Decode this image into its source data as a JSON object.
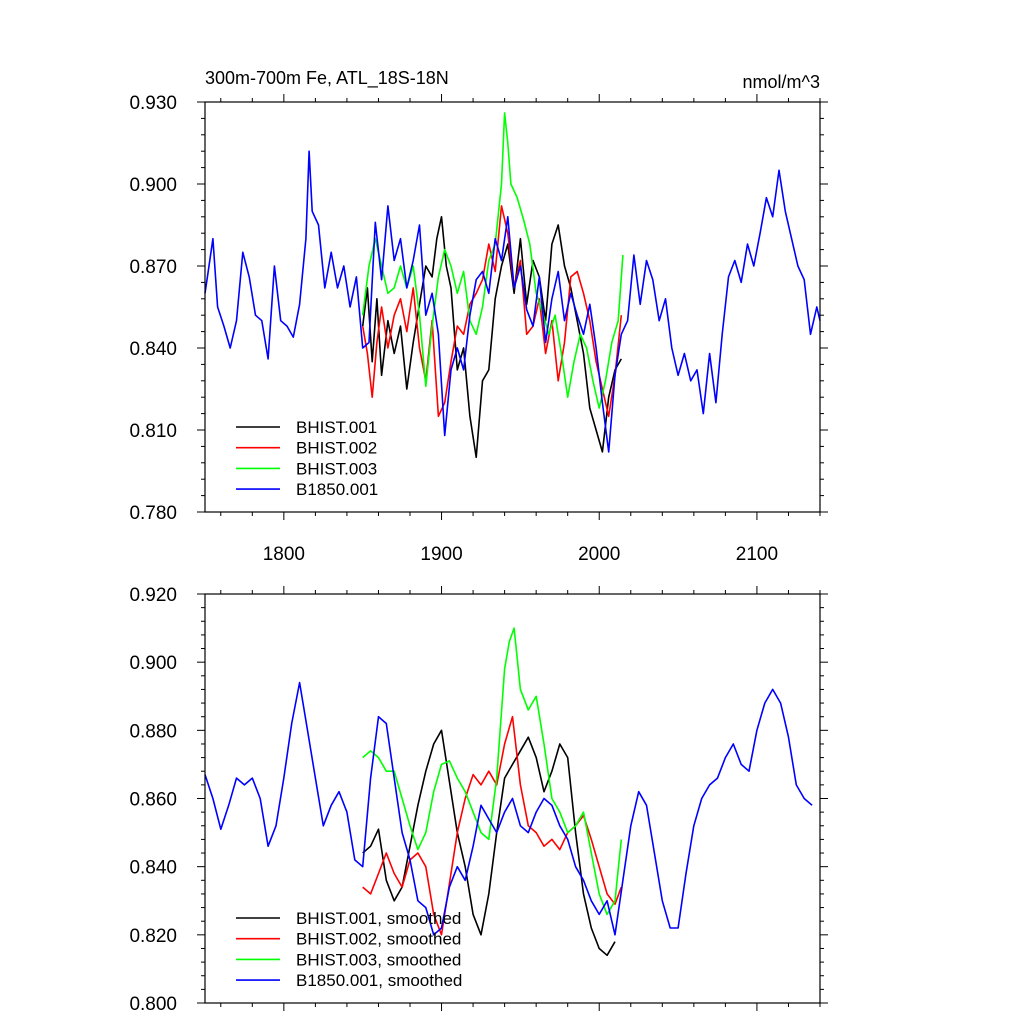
{
  "chart_data": [
    {
      "type": "line",
      "title": "300m-700m Fe, ATL_18S-18N",
      "units": "nmol/m^3",
      "xlim": [
        1750,
        2140
      ],
      "ylim": [
        0.78,
        0.93
      ],
      "xticks": [
        1800,
        1900,
        2000,
        2100
      ],
      "xtick_labels": [
        "1800",
        "1900",
        "2000",
        "2100"
      ],
      "yticks": [
        0.78,
        0.81,
        0.84,
        0.87,
        0.9,
        0.93
      ],
      "ytick_labels": [
        "0.780",
        "0.810",
        "0.840",
        "0.870",
        "0.900",
        "0.930"
      ],
      "legend_position": "bottom-left",
      "series": [
        {
          "name": "BHIST.001",
          "color": "#000000",
          "x": [
            1850,
            1853,
            1856,
            1859,
            1862,
            1866,
            1870,
            1874,
            1878,
            1882,
            1886,
            1890,
            1894,
            1897,
            1900,
            1903,
            1906,
            1910,
            1914,
            1918,
            1922,
            1926,
            1930,
            1934,
            1938,
            1942,
            1946,
            1950,
            1954,
            1958,
            1962,
            1966,
            1970,
            1974,
            1978,
            1982,
            1986,
            1990,
            1994,
            1998,
            2002,
            2006,
            2010,
            2014
          ],
          "y": [
            0.848,
            0.862,
            0.835,
            0.858,
            0.83,
            0.85,
            0.838,
            0.848,
            0.825,
            0.842,
            0.856,
            0.87,
            0.866,
            0.88,
            0.888,
            0.87,
            0.862,
            0.832,
            0.84,
            0.815,
            0.8,
            0.828,
            0.832,
            0.858,
            0.87,
            0.878,
            0.86,
            0.88,
            0.856,
            0.872,
            0.866,
            0.85,
            0.878,
            0.885,
            0.87,
            0.862,
            0.85,
            0.838,
            0.818,
            0.81,
            0.802,
            0.822,
            0.832,
            0.836
          ]
        },
        {
          "name": "BHIST.002",
          "color": "#ff0000",
          "x": [
            1850,
            1853,
            1856,
            1859,
            1862,
            1866,
            1870,
            1874,
            1878,
            1882,
            1886,
            1890,
            1894,
            1898,
            1902,
            1906,
            1910,
            1914,
            1918,
            1922,
            1926,
            1930,
            1934,
            1938,
            1942,
            1946,
            1950,
            1954,
            1958,
            1962,
            1966,
            1970,
            1974,
            1978,
            1982,
            1986,
            1990,
            1994,
            1998,
            2002,
            2006,
            2010,
            2014
          ],
          "y": [
            0.848,
            0.838,
            0.822,
            0.842,
            0.855,
            0.84,
            0.852,
            0.858,
            0.846,
            0.862,
            0.84,
            0.828,
            0.85,
            0.815,
            0.82,
            0.835,
            0.848,
            0.845,
            0.856,
            0.86,
            0.865,
            0.878,
            0.868,
            0.892,
            0.882,
            0.862,
            0.872,
            0.845,
            0.848,
            0.858,
            0.838,
            0.85,
            0.828,
            0.842,
            0.866,
            0.868,
            0.86,
            0.85,
            0.835,
            0.825,
            0.815,
            0.83,
            0.852
          ]
        },
        {
          "name": "BHIST.003",
          "color": "#00ff00",
          "x": [
            1850,
            1854,
            1858,
            1862,
            1866,
            1870,
            1874,
            1878,
            1882,
            1886,
            1890,
            1894,
            1898,
            1902,
            1906,
            1910,
            1914,
            1918,
            1922,
            1926,
            1930,
            1934,
            1938,
            1940,
            1942,
            1944,
            1948,
            1952,
            1956,
            1960,
            1964,
            1968,
            1972,
            1976,
            1980,
            1984,
            1988,
            1992,
            1996,
            2000,
            2004,
            2008,
            2012,
            2015
          ],
          "y": [
            0.852,
            0.87,
            0.88,
            0.87,
            0.86,
            0.862,
            0.87,
            0.862,
            0.87,
            0.852,
            0.826,
            0.848,
            0.866,
            0.876,
            0.87,
            0.86,
            0.868,
            0.85,
            0.845,
            0.855,
            0.872,
            0.878,
            0.9,
            0.926,
            0.915,
            0.9,
            0.895,
            0.887,
            0.878,
            0.86,
            0.853,
            0.845,
            0.852,
            0.838,
            0.822,
            0.835,
            0.845,
            0.84,
            0.828,
            0.818,
            0.828,
            0.842,
            0.85,
            0.874
          ]
        },
        {
          "name": "B1850.001",
          "color": "#0000ff",
          "x": [
            1750,
            1752,
            1755,
            1758,
            1762,
            1766,
            1770,
            1774,
            1778,
            1782,
            1786,
            1790,
            1794,
            1798,
            1802,
            1806,
            1810,
            1814,
            1816,
            1818,
            1822,
            1826,
            1830,
            1834,
            1838,
            1842,
            1846,
            1850,
            1854,
            1858,
            1862,
            1866,
            1870,
            1874,
            1878,
            1882,
            1886,
            1890,
            1894,
            1898,
            1902,
            1906,
            1910,
            1914,
            1918,
            1922,
            1926,
            1930,
            1934,
            1938,
            1942,
            1946,
            1950,
            1954,
            1958,
            1962,
            1966,
            1970,
            1974,
            1978,
            1982,
            1986,
            1990,
            1994,
            1998,
            2002,
            2006,
            2010,
            2014,
            2018,
            2022,
            2026,
            2030,
            2034,
            2038,
            2042,
            2046,
            2050,
            2054,
            2058,
            2062,
            2066,
            2070,
            2074,
            2078,
            2082,
            2086,
            2090,
            2094,
            2098,
            2102,
            2106,
            2110,
            2114,
            2118,
            2122,
            2126,
            2130,
            2134,
            2138,
            2140
          ],
          "y": [
            0.86,
            0.868,
            0.88,
            0.855,
            0.848,
            0.84,
            0.85,
            0.875,
            0.866,
            0.852,
            0.85,
            0.836,
            0.87,
            0.85,
            0.848,
            0.844,
            0.856,
            0.88,
            0.912,
            0.89,
            0.885,
            0.862,
            0.875,
            0.862,
            0.87,
            0.855,
            0.866,
            0.84,
            0.842,
            0.886,
            0.865,
            0.892,
            0.872,
            0.88,
            0.862,
            0.872,
            0.885,
            0.852,
            0.86,
            0.845,
            0.808,
            0.832,
            0.84,
            0.832,
            0.852,
            0.865,
            0.868,
            0.86,
            0.88,
            0.872,
            0.888,
            0.862,
            0.87,
            0.854,
            0.848,
            0.866,
            0.842,
            0.858,
            0.868,
            0.85,
            0.86,
            0.852,
            0.845,
            0.856,
            0.84,
            0.82,
            0.802,
            0.83,
            0.845,
            0.85,
            0.874,
            0.856,
            0.872,
            0.865,
            0.85,
            0.858,
            0.84,
            0.83,
            0.838,
            0.828,
            0.832,
            0.816,
            0.838,
            0.82,
            0.845,
            0.866,
            0.872,
            0.864,
            0.878,
            0.87,
            0.882,
            0.895,
            0.888,
            0.905,
            0.89,
            0.88,
            0.87,
            0.865,
            0.845,
            0.855,
            0.85
          ]
        }
      ]
    },
    {
      "type": "line",
      "xlim": [
        1750,
        2140
      ],
      "ylim": [
        0.8,
        0.92
      ],
      "yticks": [
        0.8,
        0.82,
        0.84,
        0.86,
        0.88,
        0.9,
        0.92
      ],
      "ytick_labels": [
        "0.800",
        "0.820",
        "0.840",
        "0.860",
        "0.880",
        "0.900",
        "0.920"
      ],
      "legend_position": "bottom-left",
      "series": [
        {
          "name": "BHIST.001, smoothed",
          "color": "#000000",
          "x": [
            1850,
            1855,
            1860,
            1865,
            1870,
            1875,
            1880,
            1885,
            1890,
            1895,
            1900,
            1905,
            1910,
            1915,
            1920,
            1925,
            1930,
            1935,
            1940,
            1945,
            1950,
            1955,
            1960,
            1965,
            1970,
            1975,
            1980,
            1985,
            1990,
            1995,
            2000,
            2005,
            2010
          ],
          "y": [
            0.844,
            0.846,
            0.851,
            0.836,
            0.83,
            0.834,
            0.846,
            0.858,
            0.868,
            0.876,
            0.88,
            0.865,
            0.85,
            0.84,
            0.826,
            0.82,
            0.832,
            0.85,
            0.866,
            0.87,
            0.874,
            0.878,
            0.872,
            0.862,
            0.868,
            0.876,
            0.872,
            0.85,
            0.832,
            0.822,
            0.816,
            0.814,
            0.818
          ]
        },
        {
          "name": "BHIST.002, smoothed",
          "color": "#ff0000",
          "x": [
            1850,
            1855,
            1860,
            1865,
            1870,
            1875,
            1880,
            1885,
            1890,
            1895,
            1900,
            1905,
            1910,
            1915,
            1920,
            1925,
            1930,
            1935,
            1940,
            1945,
            1950,
            1955,
            1960,
            1965,
            1970,
            1975,
            1980,
            1985,
            1990,
            1995,
            2000,
            2005,
            2010,
            2014
          ],
          "y": [
            0.834,
            0.832,
            0.838,
            0.844,
            0.838,
            0.834,
            0.842,
            0.844,
            0.84,
            0.826,
            0.82,
            0.835,
            0.85,
            0.86,
            0.867,
            0.864,
            0.868,
            0.864,
            0.876,
            0.884,
            0.864,
            0.852,
            0.85,
            0.846,
            0.848,
            0.845,
            0.85,
            0.852,
            0.855,
            0.848,
            0.84,
            0.832,
            0.829,
            0.834
          ]
        },
        {
          "name": "BHIST.003, smoothed",
          "color": "#00ff00",
          "x": [
            1850,
            1855,
            1860,
            1865,
            1870,
            1875,
            1880,
            1885,
            1890,
            1895,
            1900,
            1905,
            1910,
            1915,
            1920,
            1925,
            1930,
            1935,
            1940,
            1943,
            1946,
            1950,
            1955,
            1960,
            1965,
            1970,
            1975,
            1980,
            1985,
            1990,
            1995,
            2000,
            2005,
            2010,
            2014
          ],
          "y": [
            0.872,
            0.874,
            0.872,
            0.868,
            0.868,
            0.86,
            0.852,
            0.845,
            0.85,
            0.862,
            0.87,
            0.871,
            0.866,
            0.862,
            0.856,
            0.85,
            0.848,
            0.866,
            0.898,
            0.906,
            0.91,
            0.892,
            0.886,
            0.89,
            0.876,
            0.86,
            0.856,
            0.85,
            0.852,
            0.856,
            0.844,
            0.832,
            0.826,
            0.83,
            0.848
          ]
        },
        {
          "name": "B1850.001, smoothed",
          "color": "#0000ff",
          "x": [
            1750,
            1755,
            1760,
            1765,
            1770,
            1775,
            1780,
            1785,
            1790,
            1795,
            1800,
            1805,
            1810,
            1815,
            1820,
            1825,
            1830,
            1835,
            1840,
            1845,
            1850,
            1855,
            1860,
            1865,
            1870,
            1875,
            1880,
            1885,
            1890,
            1895,
            1900,
            1905,
            1910,
            1915,
            1920,
            1925,
            1930,
            1935,
            1940,
            1945,
            1950,
            1955,
            1960,
            1965,
            1970,
            1975,
            1980,
            1985,
            1990,
            1995,
            2000,
            2005,
            2010,
            2015,
            2020,
            2025,
            2030,
            2035,
            2040,
            2045,
            2050,
            2055,
            2060,
            2065,
            2070,
            2075,
            2080,
            2085,
            2090,
            2095,
            2100,
            2105,
            2110,
            2115,
            2120,
            2125,
            2130,
            2135
          ],
          "y": [
            0.867,
            0.86,
            0.851,
            0.858,
            0.866,
            0.864,
            0.866,
            0.86,
            0.846,
            0.852,
            0.866,
            0.882,
            0.894,
            0.88,
            0.866,
            0.852,
            0.858,
            0.862,
            0.856,
            0.842,
            0.84,
            0.866,
            0.884,
            0.882,
            0.866,
            0.85,
            0.842,
            0.83,
            0.828,
            0.82,
            0.822,
            0.834,
            0.84,
            0.836,
            0.846,
            0.858,
            0.854,
            0.85,
            0.856,
            0.86,
            0.852,
            0.85,
            0.856,
            0.86,
            0.858,
            0.852,
            0.848,
            0.84,
            0.836,
            0.83,
            0.826,
            0.83,
            0.82,
            0.836,
            0.852,
            0.862,
            0.858,
            0.844,
            0.83,
            0.822,
            0.822,
            0.838,
            0.852,
            0.86,
            0.864,
            0.866,
            0.872,
            0.876,
            0.87,
            0.868,
            0.88,
            0.888,
            0.892,
            0.888,
            0.878,
            0.864,
            0.86,
            0.858
          ]
        }
      ]
    }
  ]
}
